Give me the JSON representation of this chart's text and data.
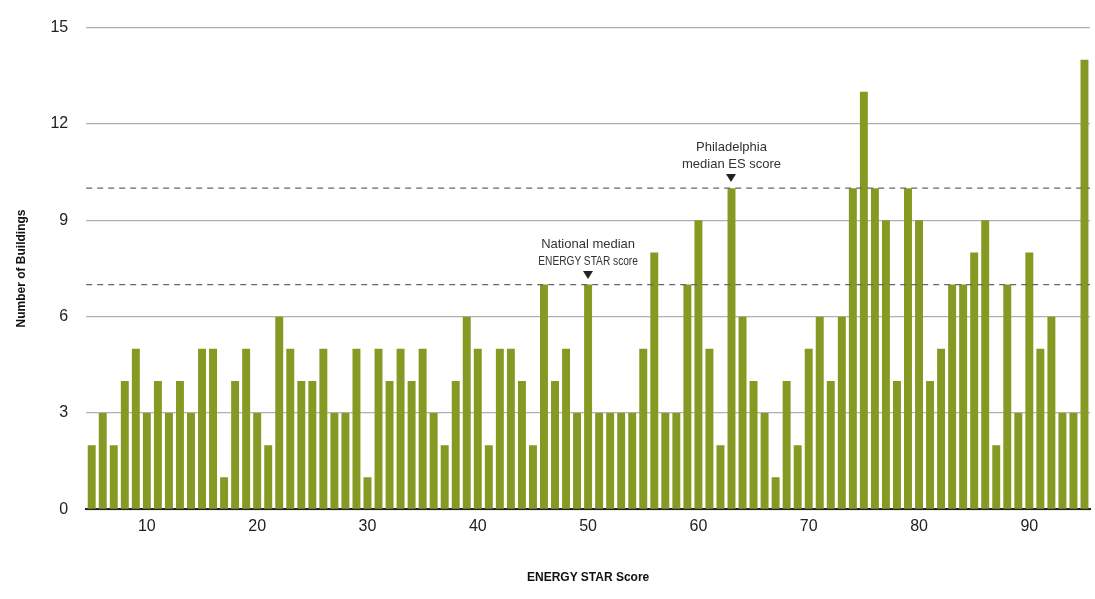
{
  "chart_data": {
    "type": "bar",
    "xlabel": "ENERGY STAR Score",
    "ylabel": "Number of Buildings",
    "x": [
      5,
      6,
      7,
      8,
      9,
      10,
      11,
      12,
      13,
      14,
      15,
      16,
      17,
      18,
      19,
      20,
      21,
      22,
      23,
      24,
      25,
      26,
      27,
      28,
      29,
      30,
      31,
      32,
      33,
      34,
      35,
      36,
      37,
      38,
      39,
      40,
      41,
      42,
      43,
      44,
      45,
      46,
      47,
      48,
      49,
      50,
      51,
      52,
      53,
      54,
      55,
      56,
      57,
      58,
      59,
      60,
      61,
      62,
      63,
      64,
      65,
      66,
      67,
      68,
      69,
      70,
      71,
      72,
      73,
      74,
      75,
      76,
      77,
      78,
      79,
      80,
      81,
      82,
      83,
      84,
      85,
      86,
      87,
      88,
      89,
      90,
      91,
      92,
      93,
      94,
      95
    ],
    "values": [
      2,
      3,
      2,
      4,
      5,
      3,
      4,
      3,
      4,
      3,
      5,
      5,
      1,
      4,
      5,
      3,
      2,
      6,
      5,
      4,
      4,
      5,
      3,
      3,
      5,
      1,
      5,
      4,
      5,
      4,
      5,
      3,
      2,
      4,
      6,
      5,
      2,
      5,
      5,
      4,
      2,
      7,
      4,
      5,
      3,
      7,
      3,
      3,
      3,
      3,
      5,
      8,
      3,
      3,
      7,
      9,
      5,
      2,
      10,
      6,
      4,
      3,
      1,
      4,
      2,
      5,
      6,
      4,
      6,
      10,
      13,
      10,
      9,
      4,
      10,
      9,
      4,
      5,
      7,
      7,
      8,
      9,
      2,
      7,
      3,
      8,
      5,
      6,
      3,
      3,
      14
    ],
    "color": "#849a22",
    "xlim": [
      4.5,
      95.5
    ],
    "xticks": [
      10,
      20,
      30,
      40,
      50,
      60,
      70,
      80,
      90
    ],
    "ylim": [
      0,
      15
    ],
    "yticks": [
      0,
      3,
      6,
      9,
      12,
      15
    ],
    "grid": "y",
    "ref_lines": [
      {
        "axis": "y",
        "value": 7,
        "line_style": "dashed",
        "color": "#666666"
      },
      {
        "axis": "y",
        "value": 10,
        "line_style": "dashed",
        "color": "#666666"
      }
    ],
    "annotations": [
      {
        "text": "National median\nENERGY STAR score",
        "x": 50,
        "y": 7
      },
      {
        "text": "Philadelphia\nmedian ES score",
        "x": 63,
        "y": 10
      }
    ]
  }
}
